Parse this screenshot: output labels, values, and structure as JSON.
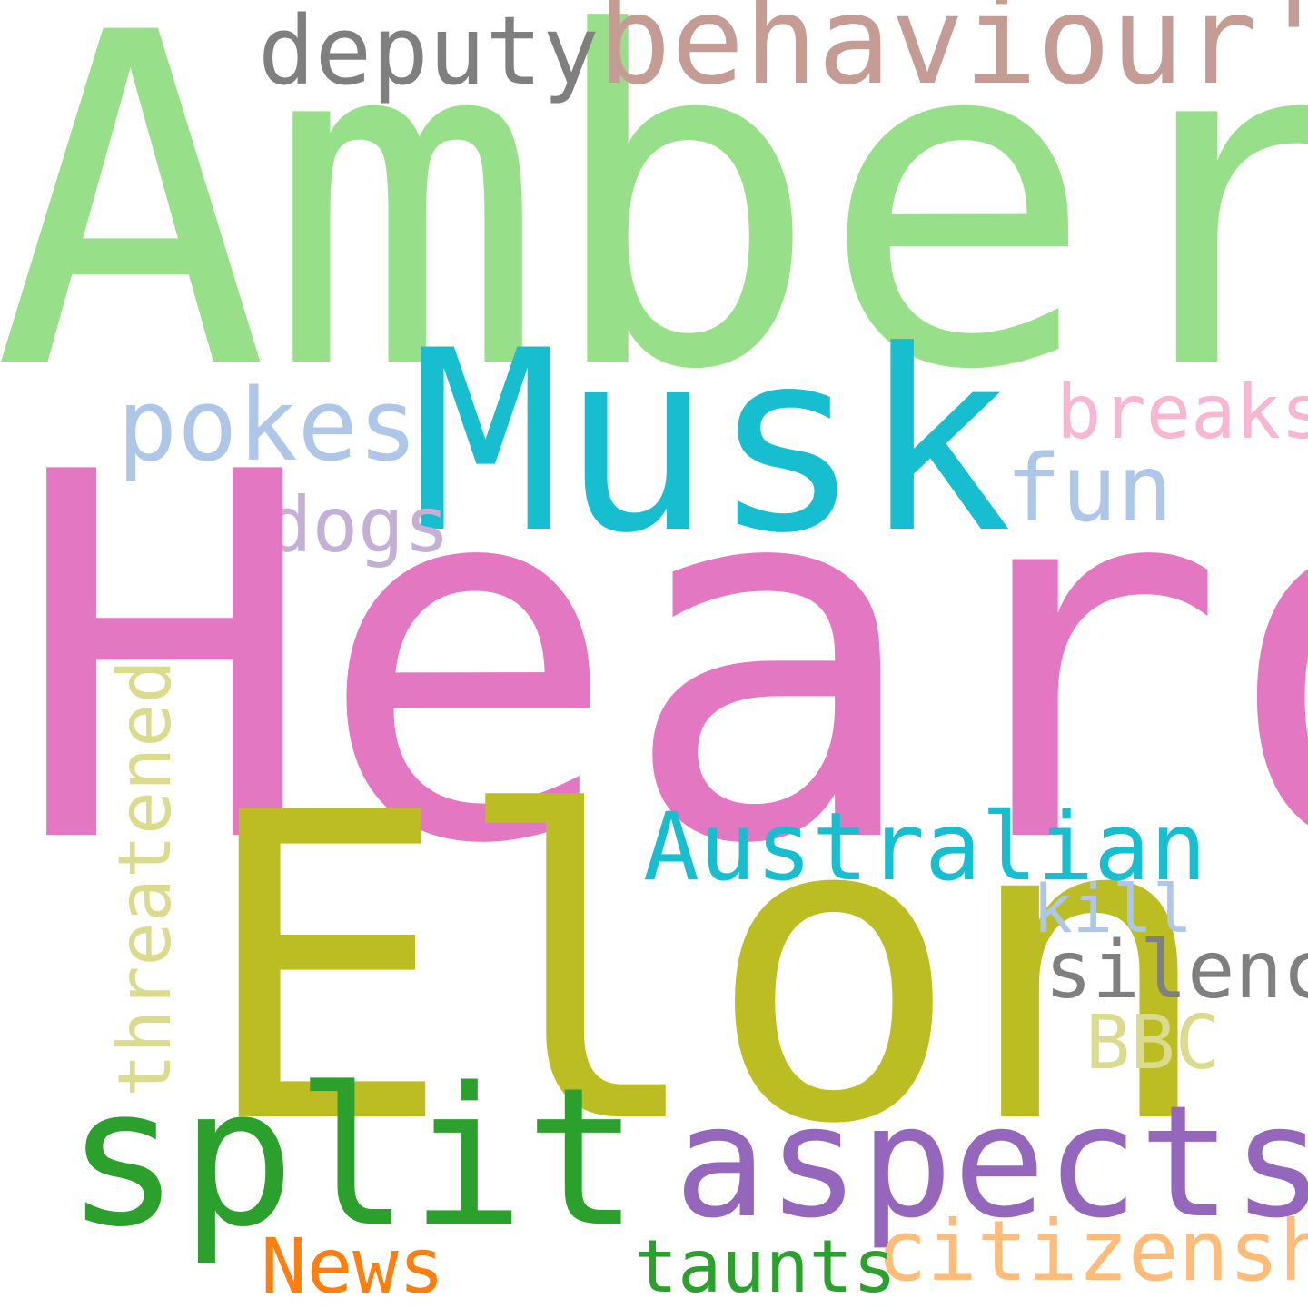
{
  "words": {
    "amber": {
      "text": "Amber",
      "color": "#98df8a"
    },
    "heard": {
      "text": "Heard",
      "color": "#e377c2"
    },
    "elon": {
      "text": "Elon",
      "color": "#bcbd22"
    },
    "musk": {
      "text": "Musk",
      "color": "#17becf"
    },
    "behaviour": {
      "text": "behaviour'",
      "color": "#c49c94"
    },
    "deputy": {
      "text": "deputy",
      "color": "#7f7f7f"
    },
    "pokes": {
      "text": "pokes",
      "color": "#aec7e8"
    },
    "breaks": {
      "text": "breaks",
      "color": "#f7b6d2"
    },
    "fun": {
      "text": "fun",
      "color": "#aec7e8"
    },
    "dogs": {
      "text": "dogs",
      "color": "#c5b0d5"
    },
    "australian": {
      "text": "Australian",
      "color": "#17becf"
    },
    "kill": {
      "text": "kill",
      "color": "#aec7e8"
    },
    "silence": {
      "text": "silence",
      "color": "#7f7f7f"
    },
    "threatened": {
      "text": "threatened",
      "color": "#dbdb8d"
    },
    "bbc": {
      "text": "BBC",
      "color": "#dbdb8d"
    },
    "split": {
      "text": "split",
      "color": "#2ca02c"
    },
    "aspects": {
      "text": "aspects",
      "color": "#9467bd"
    },
    "citizenship": {
      "text": "citizenship",
      "color": "#ffbb78"
    },
    "news": {
      "text": "News",
      "color": "#ff7f0e"
    },
    "taunts": {
      "text": "taunts",
      "color": "#2ca02c"
    }
  }
}
